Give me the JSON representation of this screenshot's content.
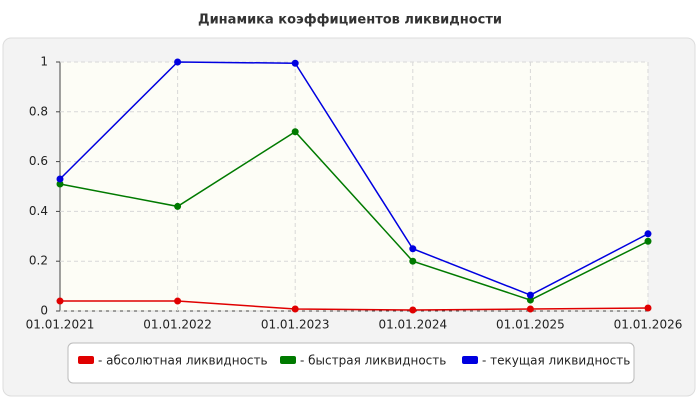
{
  "chart_data": {
    "type": "line",
    "title": "Динамика коэффициентов ликвидности",
    "categories": [
      "01.01.2021",
      "01.01.2022",
      "01.01.2023",
      "01.01.2024",
      "01.01.2025",
      "01.01.2026"
    ],
    "series": [
      {
        "name": "- абсолютная ликвидность",
        "color": "#e00000",
        "values": [
          0.04,
          0.04,
          0.008,
          0.004,
          0.008,
          0.012
        ]
      },
      {
        "name": "- быстрая ликвидность",
        "color": "#007a00",
        "values": [
          0.51,
          0.42,
          0.72,
          0.2,
          0.044,
          0.28
        ]
      },
      {
        "name": "- текущая ликвидность",
        "color": "#0000e0",
        "values": [
          0.53,
          1.0,
          0.995,
          0.25,
          0.064,
          0.31
        ]
      }
    ],
    "ylim": [
      0,
      1
    ],
    "yticks": [
      0,
      0.2,
      0.4,
      0.6,
      0.8,
      1
    ],
    "grid": true,
    "legend": "bottom"
  }
}
